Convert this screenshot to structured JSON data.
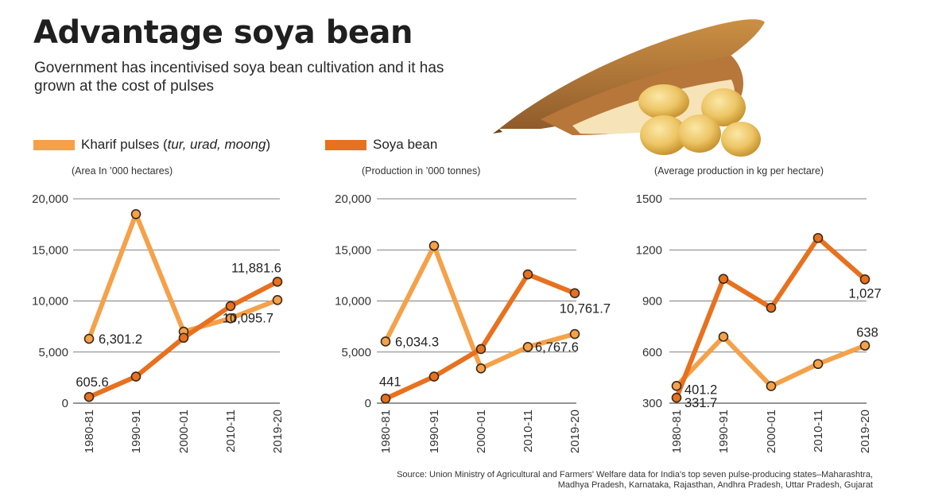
{
  "title": "Advantage soya bean",
  "subtitle": "Government has incentivised soya bean cultivation and it has grown at the cost of pulses",
  "legend": {
    "pulses_label": "Kharif pulses (",
    "pulses_italic": "tur, urad, moong",
    "pulses_close": ")",
    "soya_label": "Soya bean"
  },
  "colors": {
    "pulses": "#f5a14a",
    "soya": "#e8711f",
    "marker_edge": "#3a2a1a",
    "grid": "#555555"
  },
  "source": {
    "line1": "Source: Union Ministry of Agricultural and Farmers' Welfare data for India's top seven pulse-producing states–Maharashtra,",
    "line2": "Madhya Pradesh, Karnataka, Rajasthan, Andhra Pradesh, Uttar Pradesh, Gujarat"
  },
  "image": {
    "description": "soya bean pod photo"
  },
  "chart_data": [
    {
      "type": "line",
      "unit_label": "(Area In ’000 hectares)",
      "categories": [
        "1980-81",
        "1990-91",
        "2000-01",
        "2010-11",
        "2019-20"
      ],
      "ylim": [
        0,
        20000
      ],
      "yticks": [
        0,
        5000,
        10000,
        15000,
        20000
      ],
      "ytick_labels": [
        "0",
        "5,000",
        "10,000",
        "15,000",
        "20,000"
      ],
      "grid": true,
      "series": [
        {
          "name": "Kharif pulses",
          "values": [
            6301.2,
            18500,
            7000,
            8300,
            10095.7
          ]
        },
        {
          "name": "Soya bean",
          "values": [
            605.6,
            2600,
            6400,
            9500,
            11881.6
          ]
        }
      ],
      "annotations": [
        {
          "series": 0,
          "index": 0,
          "text": "6,301.2"
        },
        {
          "series": 0,
          "index": 4,
          "text": "10,095.7"
        },
        {
          "series": 1,
          "index": 0,
          "text": "605.6"
        },
        {
          "series": 1,
          "index": 4,
          "text": "11,881.6"
        }
      ]
    },
    {
      "type": "line",
      "unit_label": "(Production in ’000 tonnes)",
      "categories": [
        "1980-81",
        "1990-91",
        "2000-01",
        "2010-11",
        "2019-20"
      ],
      "ylim": [
        0,
        20000
      ],
      "yticks": [
        0,
        5000,
        10000,
        15000,
        20000
      ],
      "ytick_labels": [
        "0",
        "5,000",
        "10,000",
        "15,000",
        "20,000"
      ],
      "grid": true,
      "series": [
        {
          "name": "Kharif pulses",
          "values": [
            6034.3,
            15400,
            3400,
            5500,
            6767.6
          ]
        },
        {
          "name": "Soya bean",
          "values": [
            441,
            2600,
            5300,
            12600,
            10761.7
          ]
        }
      ],
      "annotations": [
        {
          "series": 0,
          "index": 0,
          "text": "6,034.3"
        },
        {
          "series": 0,
          "index": 4,
          "text": "6,767.6"
        },
        {
          "series": 1,
          "index": 0,
          "text": "441"
        },
        {
          "series": 1,
          "index": 4,
          "text": "10,761.7"
        }
      ]
    },
    {
      "type": "line",
      "unit_label": "(Average production in kg per hectare)",
      "categories": [
        "1980-81",
        "1990-91",
        "2000-01",
        "2010-11",
        "2019-20"
      ],
      "ylim": [
        300,
        1500
      ],
      "yticks": [
        300,
        600,
        900,
        1200,
        1500
      ],
      "ytick_labels": [
        "300",
        "600",
        "900",
        "1200",
        "1500"
      ],
      "grid": true,
      "series": [
        {
          "name": "Kharif pulses",
          "values": [
            401.2,
            690,
            400,
            530,
            638
          ]
        },
        {
          "name": "Soya bean",
          "values": [
            331.7,
            1030,
            860,
            1270,
            1027
          ]
        }
      ],
      "annotations": [
        {
          "series": 0,
          "index": 0,
          "text": "401.2"
        },
        {
          "series": 0,
          "index": 4,
          "text": "638"
        },
        {
          "series": 1,
          "index": 0,
          "text": "331.7"
        },
        {
          "series": 1,
          "index": 4,
          "text": "1,027"
        }
      ]
    }
  ]
}
